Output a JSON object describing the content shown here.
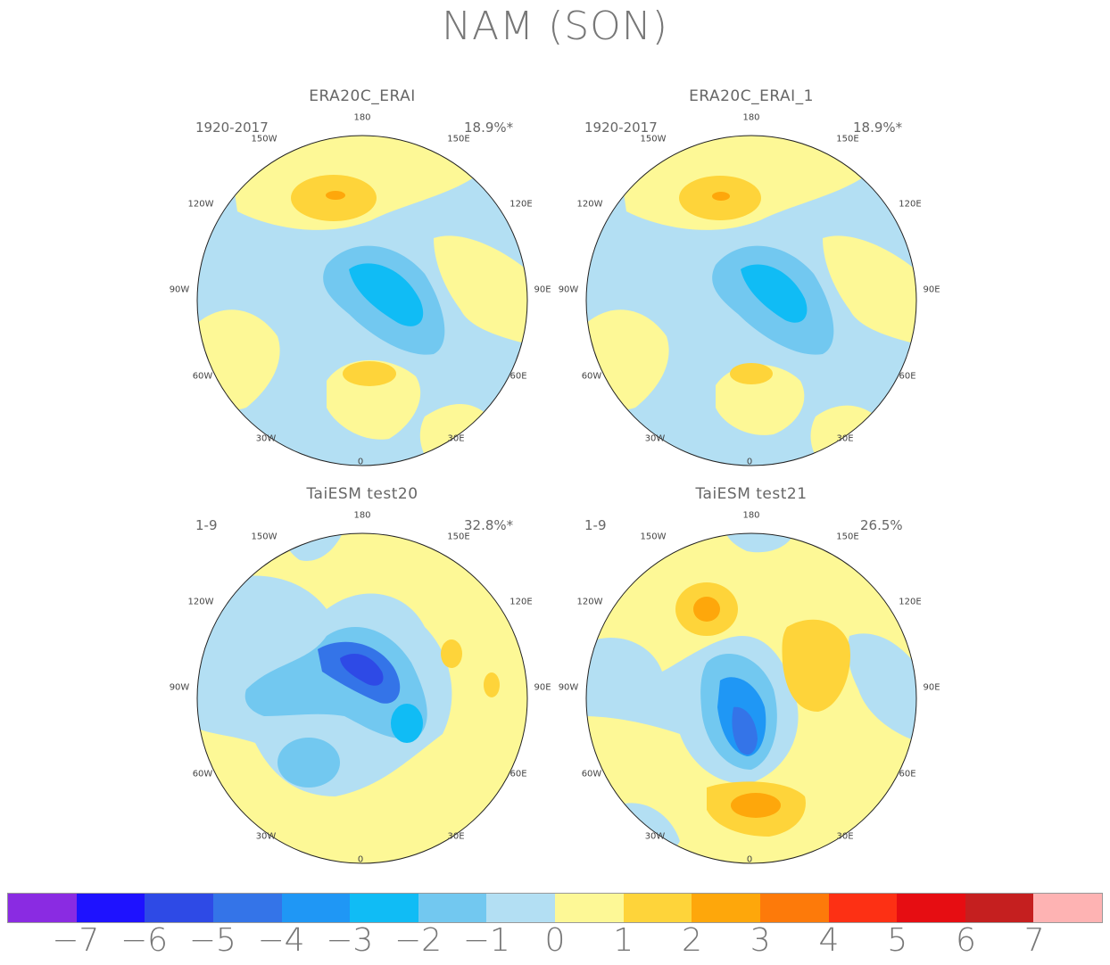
{
  "title": "NAM (SON)",
  "panels": [
    {
      "title": "ERA20C_ERAI",
      "period": "1920-2017",
      "variance": "18.9%*"
    },
    {
      "title": "ERA20C_ERAI_1",
      "period": "1920-2017",
      "variance": "18.9%*"
    },
    {
      "title": "TaiESM test20",
      "period": "1-9",
      "variance": "32.8%*"
    },
    {
      "title": "TaiESM test21",
      "period": "1-9",
      "variance": "26.5%"
    }
  ],
  "longitude_labels": [
    "180",
    "150E",
    "120E",
    "90E",
    "60E",
    "30E",
    "0",
    "30W",
    "60W",
    "90W",
    "120W",
    "150W"
  ],
  "colorbar": {
    "colors": [
      "#8a2be2",
      "#1e12ff",
      "#2e4ae6",
      "#3474e8",
      "#1f97f5",
      "#10bcf5",
      "#72c8f0",
      "#b3dff3",
      "#fdf896",
      "#fed43a",
      "#fea70b",
      "#fd7a0a",
      "#fd3014",
      "#e60d12",
      "#c51f1f",
      "#feb3b3"
    ],
    "tick_labels": [
      "-7",
      "-6",
      "-5",
      "-4",
      "-3",
      "-2",
      "-1",
      "0",
      "1",
      "2",
      "3",
      "4",
      "5",
      "6",
      "7"
    ]
  }
}
